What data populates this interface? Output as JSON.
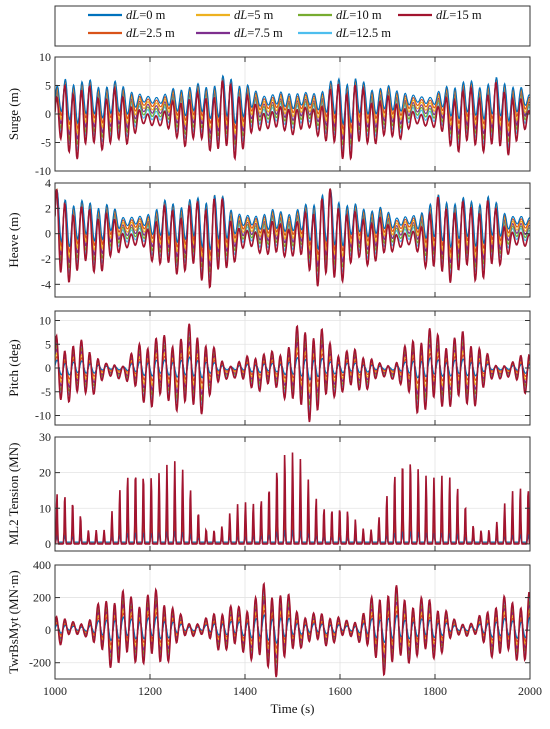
{
  "chart_data": {
    "type": "line",
    "xlabel": "Time (s)",
    "xlim": [
      1000,
      2000
    ],
    "xticks": [
      1000,
      1200,
      1400,
      1600,
      1800,
      2000
    ],
    "legend": {
      "placement": "top",
      "entries": [
        {
          "prefix": "dL",
          "suffix": "=0 m",
          "color": "#0072BD"
        },
        {
          "prefix": "dL",
          "suffix": "=5 m",
          "color": "#EDB120"
        },
        {
          "prefix": "dL",
          "suffix": "=10 m",
          "color": "#77AC30"
        },
        {
          "prefix": "dL",
          "suffix": "=15 m",
          "color": "#A2142F"
        },
        {
          "prefix": "dL",
          "suffix": "=2.5 m",
          "color": "#D95319"
        },
        {
          "prefix": "dL",
          "suffix": "=7.5 m",
          "color": "#7E2F8E"
        },
        {
          "prefix": "dL",
          "suffix": "=12.5 m",
          "color": "#4DBEEE"
        }
      ]
    },
    "grid": true,
    "panels": [
      {
        "ylabel": "Surge (m)",
        "ylim": [
          -10,
          10
        ],
        "yticks": [
          -10,
          -5,
          0,
          5,
          10
        ],
        "envelope": {
          "dL=0 m": [
            -2,
            7
          ],
          "dL=15 m": [
            -8.5,
            6.5
          ]
        }
      },
      {
        "ylabel": "Heave (m)",
        "ylim": [
          -5,
          4
        ],
        "yticks": [
          -4,
          -2,
          0,
          2,
          4
        ],
        "envelope": {
          "dL=0 m": [
            -1.5,
            3.5
          ],
          "dL=15 m": [
            -4.6,
            3.6
          ]
        }
      },
      {
        "ylabel": "Pitch (deg)",
        "ylim": [
          -12,
          12
        ],
        "yticks": [
          -10,
          -5,
          0,
          5,
          10
        ],
        "envelope": {
          "dL=0 m": [
            -2.5,
            2.5
          ],
          "dL=15 m": [
            -11.5,
            10.2
          ]
        }
      },
      {
        "ylabel": "ML2 Tension (MN)",
        "ylim": [
          -2,
          30
        ],
        "yticks": [
          0,
          10,
          20,
          30
        ],
        "envelope": {
          "dL=0 m": [
            0.5,
            4
          ],
          "dL=15 m": [
            0,
            26
          ]
        }
      },
      {
        "ylabel": "TwrBsMyt (MN·m)",
        "ylim": [
          -300,
          400
        ],
        "yticks": [
          -200,
          0,
          200,
          400
        ],
        "envelope": {
          "dL=0 m": [
            -80,
            100
          ],
          "dL=15 m": [
            -290,
            305
          ]
        }
      }
    ]
  }
}
